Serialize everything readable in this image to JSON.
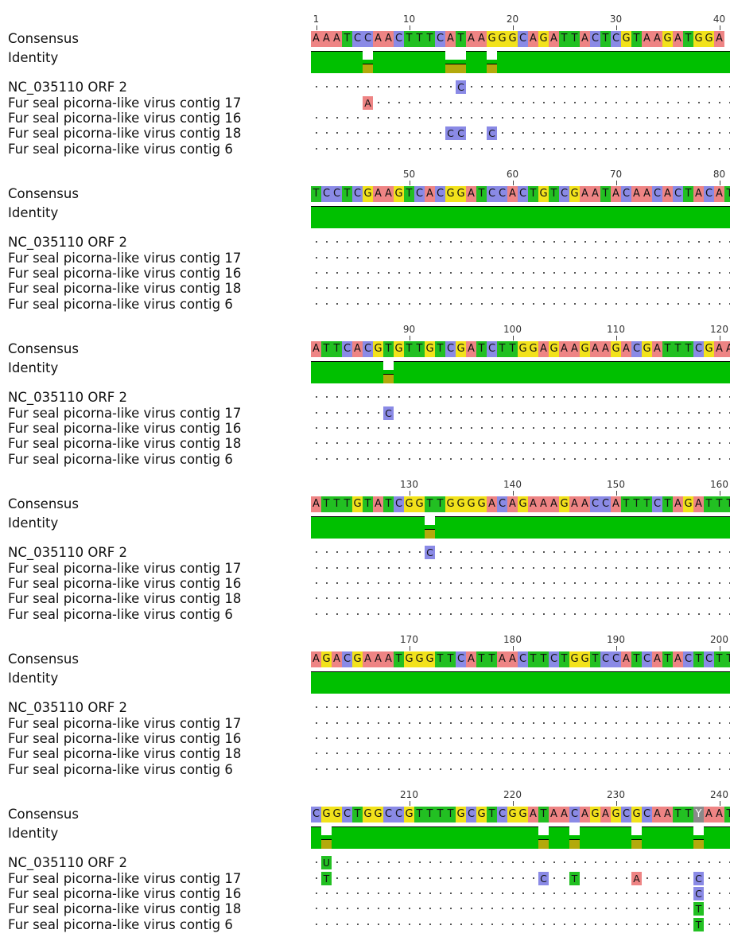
{
  "colors": {
    "A": "#ee8484",
    "C": "#8a8ae6",
    "G": "#f2e21b",
    "T": "#22c022",
    "U": "#22c022",
    "Y": "#8a8a8a"
  },
  "labels": {
    "consensus": "Consensus",
    "identity": "Identity",
    "rows": [
      "NC_035110 ORF 2",
      "Fur seal picorna-like virus contig  17",
      "Fur seal picorna-like virus contig  16",
      "Fur seal picorna-like virus contig  18",
      "Fur seal picorna-like virus contig  6"
    ]
  },
  "blocks": [
    {
      "ticks": [
        "1",
        "10",
        "20",
        "30",
        "40"
      ],
      "consensus": "AAATCCAACTTTCATAAGGGCAGATTACTCGTAAGATGGA",
      "identity_dips": [
        5,
        13,
        14,
        17
      ],
      "diffs": [
        [
          [
            14,
            "C"
          ]
        ],
        [
          [
            5,
            "A"
          ]
        ],
        [],
        [
          [
            13,
            "C"
          ],
          [
            14,
            "C"
          ],
          [
            17,
            "C"
          ]
        ],
        []
      ],
      "row_start": [
        0,
        5,
        0,
        0,
        0
      ]
    },
    {
      "ticks": [
        "50",
        "60",
        "70",
        "80"
      ],
      "consensus": "TCCTCGAAGTCACGGATCCACTGTCGAATACAACACTACAT",
      "identity_dips": [],
      "diffs": [
        [],
        [],
        [],
        [],
        []
      ],
      "row_start": [
        0,
        0,
        0,
        0,
        0
      ]
    },
    {
      "ticks": [
        "90",
        "100",
        "110",
        "120"
      ],
      "consensus": "ATTCACGTGTTGTCGATCTTGGAGAAGAAGACGATTTCGAA",
      "identity_dips": [
        7
      ],
      "diffs": [
        [],
        [
          [
            7,
            "C"
          ]
        ],
        [],
        [],
        []
      ],
      "row_start": [
        0,
        0,
        0,
        0,
        0
      ]
    },
    {
      "ticks": [
        "130",
        "140",
        "150",
        "160"
      ],
      "consensus": "ATTTGTATCGGTTGGGGACAGAAAGAACCATTTCTAGATTT",
      "identity_dips": [
        11
      ],
      "diffs": [
        [
          [
            11,
            "C"
          ]
        ],
        [],
        [],
        [],
        []
      ],
      "row_start": [
        0,
        0,
        0,
        0,
        0
      ]
    },
    {
      "ticks": [
        "170",
        "180",
        "190",
        "200"
      ],
      "consensus": "AGACGAAATGGGTTCATTAACTTCTGGTCCATCATACTCTT",
      "identity_dips": [],
      "diffs": [
        [],
        [],
        [],
        [],
        []
      ],
      "row_start": [
        0,
        0,
        0,
        0,
        0
      ]
    },
    {
      "ticks": [
        "210",
        "220",
        "230",
        "240"
      ],
      "consensus": "CGGCTGGCCGTTTTGCGTCGGATAACAGAGCGCAATTYAAT",
      "identity_dips": [
        1,
        22,
        25,
        31,
        37
      ],
      "diffs": [
        [
          [
            1,
            "U"
          ]
        ],
        [
          [
            1,
            "T"
          ],
          [
            22,
            "C"
          ],
          [
            25,
            "T"
          ],
          [
            31,
            "A"
          ],
          [
            37,
            "C"
          ]
        ],
        [
          [
            37,
            "C"
          ]
        ],
        [
          [
            37,
            "T"
          ]
        ],
        [
          [
            37,
            "T"
          ]
        ]
      ],
      "row_start": [
        0,
        0,
        0,
        0,
        0
      ]
    }
  ]
}
